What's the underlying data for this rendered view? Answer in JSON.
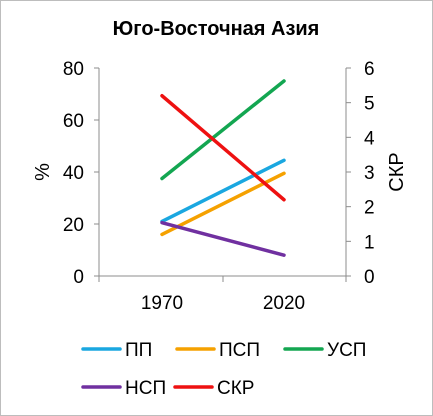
{
  "chart_data": {
    "type": "line",
    "title": "Юго-Восточная Азия",
    "x": [
      "1970",
      "2020"
    ],
    "ylabel": "%",
    "y2label": "СКР",
    "ylim": [
      0,
      80
    ],
    "y2lim": [
      0,
      6
    ],
    "yticks": [
      "0",
      "20",
      "40",
      "60",
      "80"
    ],
    "y2ticks": [
      "0",
      "1",
      "2",
      "3",
      "4",
      "5",
      "6"
    ],
    "grid": false,
    "legend_position": "bottom",
    "series": [
      {
        "name": "ПП",
        "axis": "left",
        "color": "#1aa7e0",
        "values": [
          21,
          44.5
        ]
      },
      {
        "name": "ПСП",
        "axis": "left",
        "color": "#f5a100",
        "values": [
          16,
          39.5
        ]
      },
      {
        "name": "УСП",
        "axis": "left",
        "color": "#13a651",
        "values": [
          37.5,
          75
        ]
      },
      {
        "name": "НСП",
        "axis": "left",
        "color": "#7030a0",
        "values": [
          20.5,
          8
        ]
      },
      {
        "name": "СКР",
        "axis": "right",
        "color": "#ee1111",
        "values": [
          5.2,
          2.2
        ]
      }
    ]
  }
}
